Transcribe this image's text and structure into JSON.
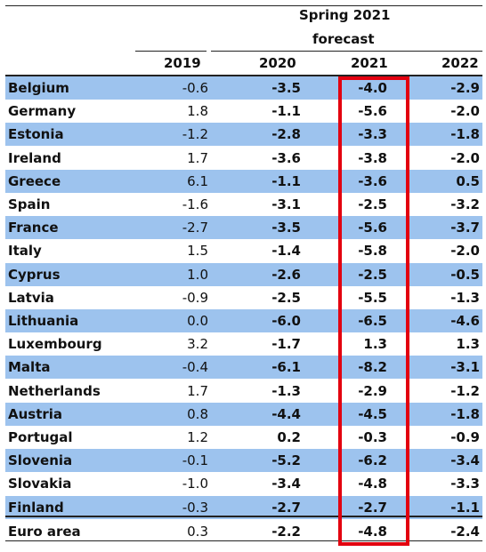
{
  "header": {
    "forecast_line1": "Spring 2021",
    "forecast_line2": "forecast",
    "columns": [
      "2019",
      "2020",
      "2021",
      "2022"
    ]
  },
  "rows": [
    {
      "country": "Belgium",
      "v2019": "-0.6",
      "v2020": "-3.5",
      "v2021": "-4.0",
      "v2022": "-2.9"
    },
    {
      "country": "Germany",
      "v2019": "1.8",
      "v2020": "-1.1",
      "v2021": "-5.6",
      "v2022": "-2.0"
    },
    {
      "country": "Estonia",
      "v2019": "-1.2",
      "v2020": "-2.8",
      "v2021": "-3.3",
      "v2022": "-1.8"
    },
    {
      "country": "Ireland",
      "v2019": "1.7",
      "v2020": "-3.6",
      "v2021": "-3.8",
      "v2022": "-2.0"
    },
    {
      "country": "Greece",
      "v2019": "6.1",
      "v2020": "-1.1",
      "v2021": "-3.6",
      "v2022": "0.5"
    },
    {
      "country": "Spain",
      "v2019": "-1.6",
      "v2020": "-3.1",
      "v2021": "-2.5",
      "v2022": "-3.2"
    },
    {
      "country": "France",
      "v2019": "-2.7",
      "v2020": "-3.5",
      "v2021": "-5.6",
      "v2022": "-3.7"
    },
    {
      "country": "Italy",
      "v2019": "1.5",
      "v2020": "-1.4",
      "v2021": "-5.8",
      "v2022": "-2.0"
    },
    {
      "country": "Cyprus",
      "v2019": "1.0",
      "v2020": "-2.6",
      "v2021": "-2.5",
      "v2022": "-0.5"
    },
    {
      "country": "Latvia",
      "v2019": "-0.9",
      "v2020": "-2.5",
      "v2021": "-5.5",
      "v2022": "-1.3"
    },
    {
      "country": "Lithuania",
      "v2019": "0.0",
      "v2020": "-6.0",
      "v2021": "-6.5",
      "v2022": "-4.6"
    },
    {
      "country": "Luxembourg",
      "v2019": "3.2",
      "v2020": "-1.7",
      "v2021": "1.3",
      "v2022": "1.3"
    },
    {
      "country": "Malta",
      "v2019": "-0.4",
      "v2020": "-6.1",
      "v2021": "-8.2",
      "v2022": "-3.1"
    },
    {
      "country": "Netherlands",
      "v2019": "1.7",
      "v2020": "-1.3",
      "v2021": "-2.9",
      "v2022": "-1.2"
    },
    {
      "country": "Austria",
      "v2019": "0.8",
      "v2020": "-4.4",
      "v2021": "-4.5",
      "v2022": "-1.8"
    },
    {
      "country": "Portugal",
      "v2019": "1.2",
      "v2020": "0.2",
      "v2021": "-0.3",
      "v2022": "-0.9"
    },
    {
      "country": "Slovenia",
      "v2019": "-0.1",
      "v2020": "-5.2",
      "v2021": "-6.2",
      "v2022": "-3.4"
    },
    {
      "country": "Slovakia",
      "v2019": "-1.0",
      "v2020": "-3.4",
      "v2021": "-4.8",
      "v2022": "-3.3"
    },
    {
      "country": "Finland",
      "v2019": "-0.3",
      "v2020": "-2.7",
      "v2021": "-2.7",
      "v2022": "-1.1"
    },
    {
      "country": "Euro area",
      "v2019": "0.3",
      "v2020": "-2.2",
      "v2021": "-4.8",
      "v2022": "-2.4"
    }
  ],
  "colors": {
    "row_shade": "#9dc3ee",
    "highlight_border": "#e3000f"
  }
}
